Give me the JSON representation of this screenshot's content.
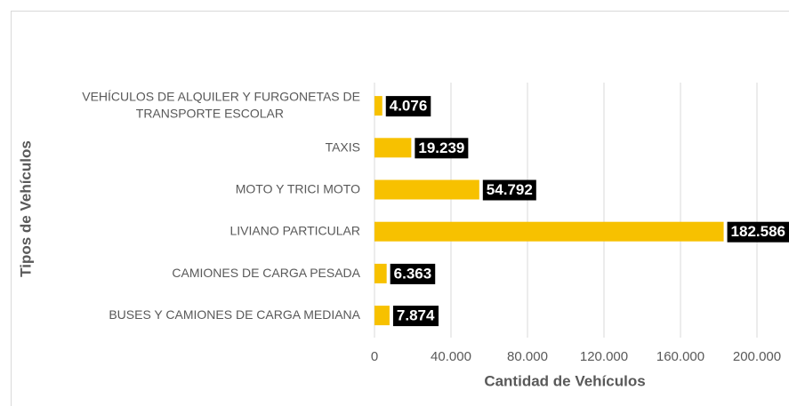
{
  "chart_data": {
    "type": "barh",
    "categories": [
      "VEHÍCULOS DE ALQUILER Y FURGONETAS DE\nTRANSPORTE  ESCOLAR",
      "TAXIS",
      "MOTO Y TRICI MOTO",
      "LIVIANO PARTICULAR",
      "CAMIONES DE CARGA PESADA",
      "BUSES Y CAMIONES DE CARGA MEDIANA"
    ],
    "values": [
      4076,
      19239,
      54792,
      182586,
      6363,
      7874
    ],
    "value_labels": [
      "4.076",
      "19.239",
      "54.792",
      "182.586",
      "6.363",
      "7.874"
    ],
    "color": "#f7c100",
    "xlabel": "Cantidad de Vehículos",
    "ylabel": "Tipos de Vehículos",
    "xlim": [
      0,
      200000
    ],
    "xticks": [
      0,
      {
        "value": 40000,
        "label": "40.000"
      },
      {
        "value": 80000,
        "label": "80.000"
      },
      {
        "value": 120000,
        "label": "120.000"
      },
      {
        "value": 160000,
        "label": "160.000"
      },
      {
        "value": 200000,
        "label": "200.000"
      }
    ],
    "grid": true
  }
}
